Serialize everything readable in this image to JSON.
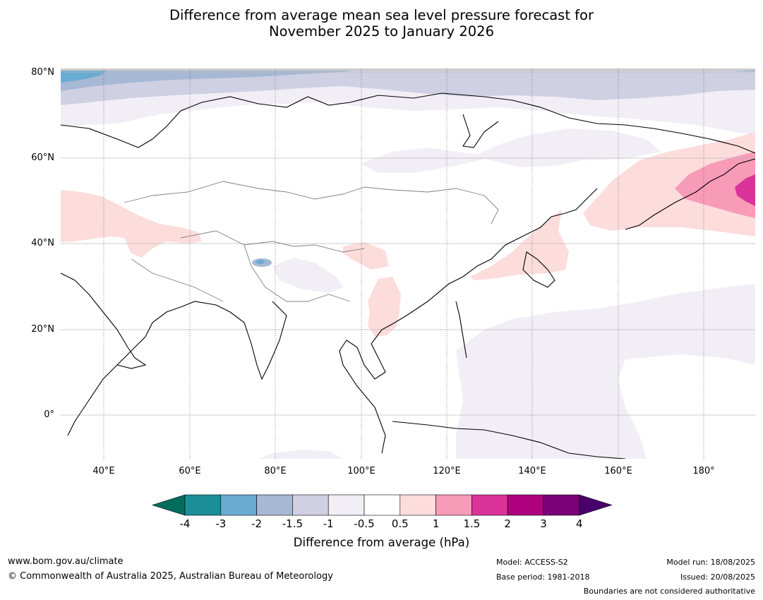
{
  "title": {
    "line1": "Difference from average mean sea level pressure forecast for",
    "line2": "November 2025 to January 2026"
  },
  "map": {
    "lon_range": [
      30,
      192
    ],
    "lat_range": [
      -10,
      81
    ],
    "lat_labels": [
      "80°N",
      "60°N",
      "40°N",
      "20°N",
      "0°"
    ],
    "lon_labels": [
      "40°E",
      "60°E",
      "80°E",
      "100°E",
      "120°E",
      "140°E",
      "160°E",
      "180°"
    ],
    "anomaly_regions": [
      {
        "class": "-3",
        "region": "Arctic Ocean north of Scandinavia",
        "color": "#6aabd2"
      },
      {
        "class": "-2",
        "region": "Arctic Ocean",
        "color": "#a6b8d4"
      },
      {
        "class": "-1.5",
        "region": "Arctic Ocean coast",
        "color": "#cfd0e3"
      },
      {
        "class": "-1",
        "region": "Northern Siberia and western Pacific",
        "color": "#f2eef6"
      },
      {
        "class": "0.5",
        "region": "Eastern Europe, Caspian, Japan, North Pacific",
        "color": "#fddcdc"
      },
      {
        "class": "1",
        "region": "North Pacific",
        "color": "#f89bb8"
      },
      {
        "class": "1.5",
        "region": "North Pacific core",
        "color": "#da3399"
      }
    ]
  },
  "colorbar": {
    "ticks": [
      "-4",
      "-3",
      "-2",
      "-1.5",
      "-1",
      "-0.5",
      "0.5",
      "1",
      "1.5",
      "2",
      "3",
      "4"
    ],
    "colors": [
      "#1a8f97",
      "#6aabd2",
      "#a6b8d4",
      "#cfd0e3",
      "#f2eef6",
      "#ffffff",
      "#fddcdc",
      "#f89bb8",
      "#da3399",
      "#ad017e",
      "#7a0177"
    ],
    "under_color": "#006d5d",
    "over_color": "#49006a",
    "label": "Difference from average (hPa)"
  },
  "footer": {
    "website": "www.bom.gov.au/climate",
    "copyright": "© Commonwealth of Australia 2025, Australian Bureau of Meteorology",
    "model": "Model: ACCESS-S2",
    "base_period": "Base period: 1981-2018",
    "model_run": "Model run: 18/08/2025",
    "issued": "Issued: 20/08/2025",
    "disclaimer": "Boundaries are not considered authoritative"
  }
}
